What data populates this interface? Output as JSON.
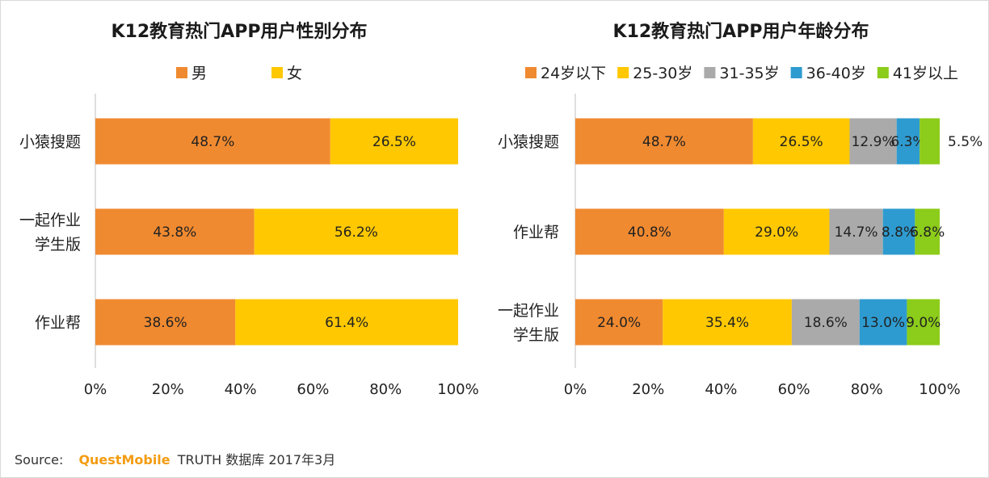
{
  "chart_data": [
    {
      "type": "bar",
      "orientation": "horizontal",
      "stacked": true,
      "title": "K12教育热门APP用户性别分布",
      "categories": [
        "小猿搜题",
        "一起作业\n学生版",
        "作业帮"
      ],
      "series": [
        {
          "name": "男",
          "color": "#f08a30",
          "values": [
            48.7,
            43.8,
            38.6
          ],
          "labels": [
            "48.7%",
            "43.8%",
            "38.6%"
          ]
        },
        {
          "name": "女",
          "color": "#ffc800",
          "values": [
            26.5,
            56.2,
            61.4
          ],
          "labels": [
            "26.5%",
            "56.2%",
            "61.4%"
          ]
        }
      ],
      "xlim": [
        0,
        100
      ],
      "xticks": [
        "0%",
        "20%",
        "40%",
        "60%",
        "80%",
        "100%"
      ],
      "legend": "top"
    },
    {
      "type": "bar",
      "orientation": "horizontal",
      "stacked": true,
      "title": "K12教育热门APP用户年龄分布",
      "categories": [
        "小猿搜题",
        "作业帮",
        "一起作业\n学生版"
      ],
      "series": [
        {
          "name": "24岁以下",
          "color": "#f08a30",
          "values": [
            48.7,
            40.8,
            24.0
          ],
          "labels": [
            "48.7%",
            "40.8%",
            "24.0%"
          ]
        },
        {
          "name": "25-30岁",
          "color": "#ffc800",
          "values": [
            26.5,
            29.0,
            35.4
          ],
          "labels": [
            "26.5%",
            "29.0%",
            "35.4%"
          ]
        },
        {
          "name": "31-35岁",
          "color": "#aaaaaa",
          "values": [
            12.9,
            14.7,
            18.6
          ],
          "labels": [
            "12.9%",
            "14.7%",
            "18.6%"
          ]
        },
        {
          "name": "36-40岁",
          "color": "#2e9bd0",
          "values": [
            6.3,
            8.8,
            13.0
          ],
          "labels": [
            "6.3%",
            "8.8%",
            "13.0%"
          ]
        },
        {
          "name": "41岁以上",
          "color": "#8ccc1a",
          "values": [
            5.5,
            6.8,
            9.0
          ],
          "labels": [
            "5.5%",
            "6.8%",
            "9.0%"
          ]
        }
      ],
      "xlim": [
        0,
        100
      ],
      "xticks": [
        "0%",
        "20%",
        "40%",
        "60%",
        "80%",
        "100%"
      ],
      "legend": "top"
    }
  ],
  "source": {
    "label": "Source:",
    "brand": "QuestMobile",
    "text": "TRUTH 数据库 2017年3月"
  }
}
